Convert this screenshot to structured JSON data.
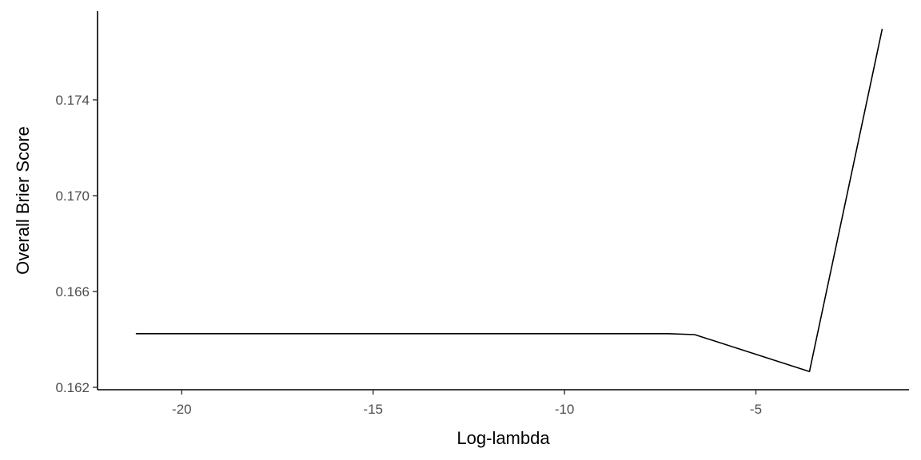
{
  "chart_data": {
    "type": "line",
    "title": "",
    "xlabel": "Log-lambda",
    "ylabel": "Overall Brier Score",
    "xlim": [
      -22.2,
      -1.0
    ],
    "ylim": [
      0.1619,
      0.1777
    ],
    "x_ticks": [
      -20,
      -15,
      -10,
      -5
    ],
    "x_tick_labels": [
      "-20",
      "-15",
      "-10",
      "-5"
    ],
    "y_ticks": [
      0.162,
      0.166,
      0.17,
      0.174
    ],
    "y_tick_labels": [
      "0.162",
      "0.166",
      "0.170",
      "0.174"
    ],
    "grid": false,
    "legend": "none",
    "line_color": "#000000",
    "series": [
      {
        "x": [
          -21.2,
          -7.3,
          -6.6,
          -3.6,
          -1.7
        ],
        "y": [
          0.16424,
          0.16424,
          0.1642,
          0.16266,
          0.17696
        ]
      }
    ]
  }
}
